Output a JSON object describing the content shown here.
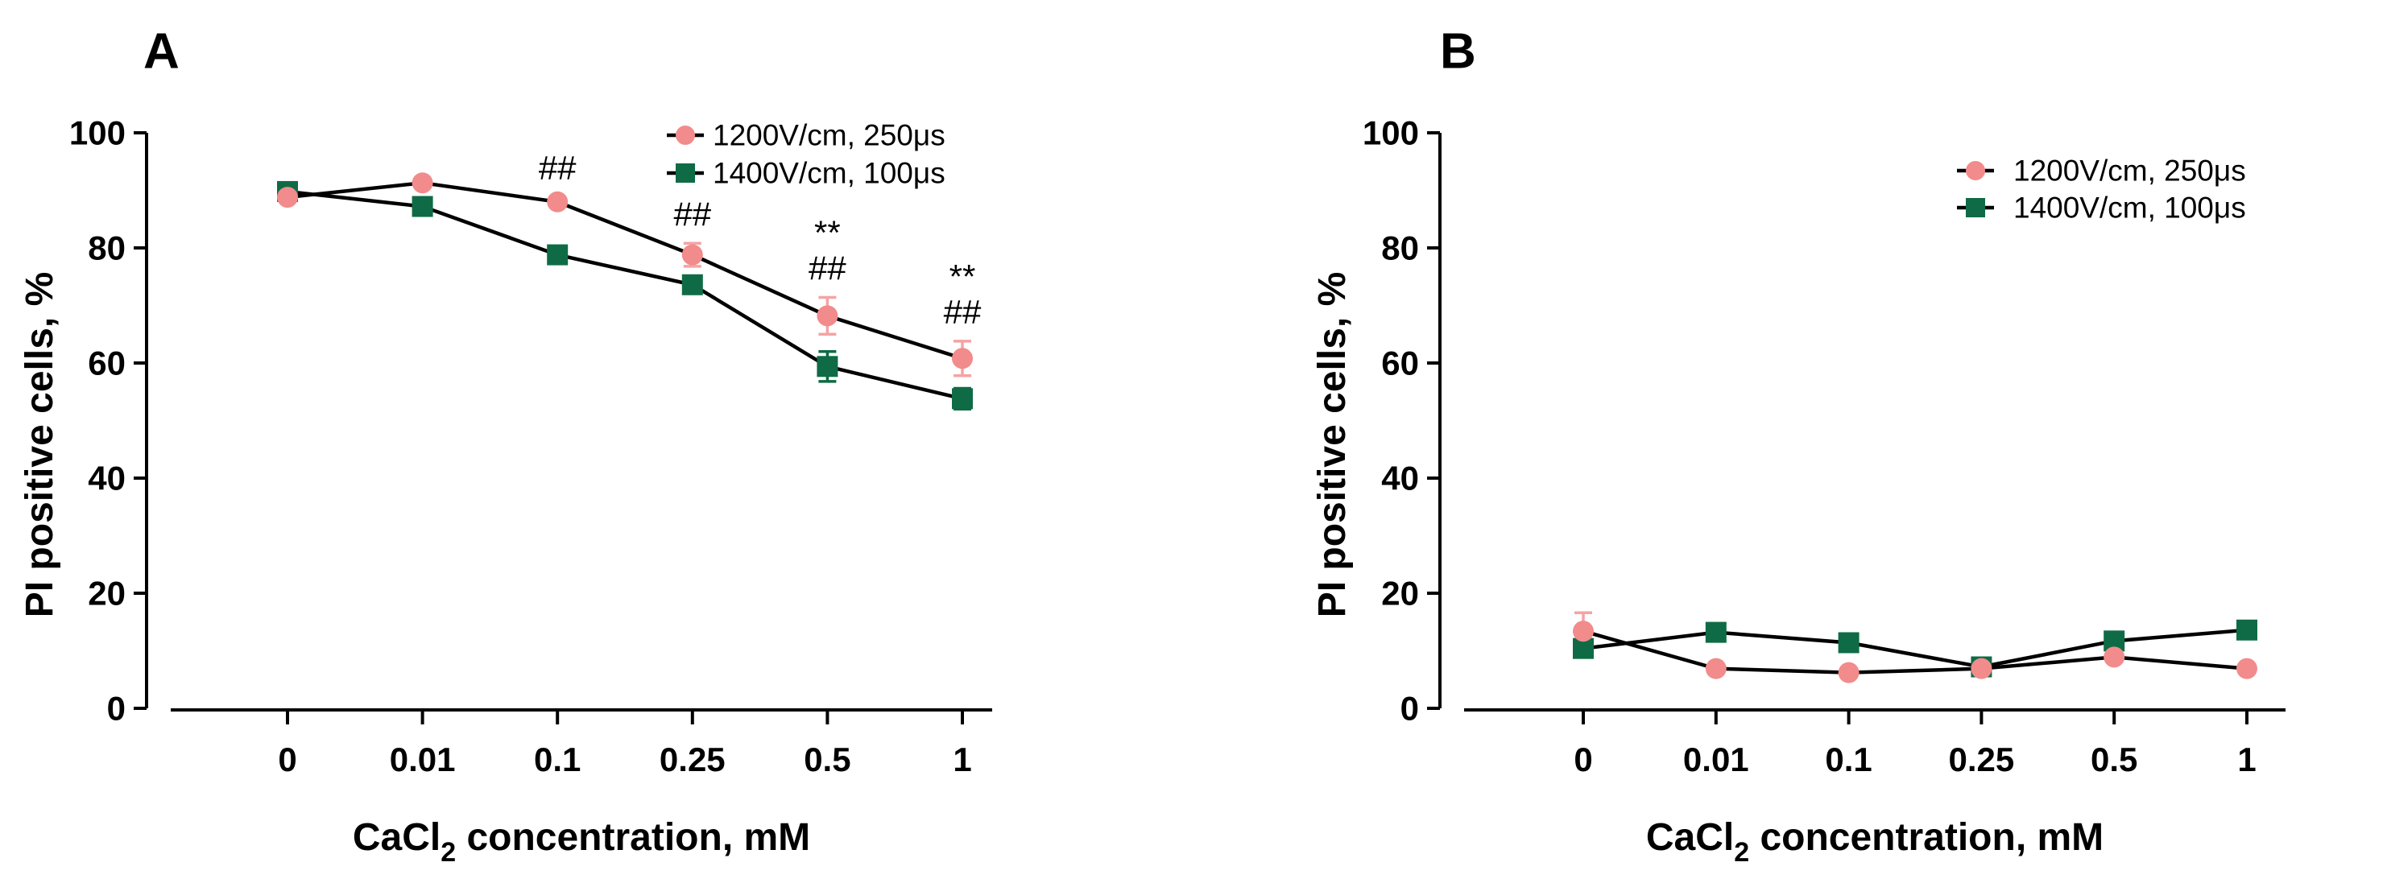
{
  "colors": {
    "series1": "#f28b8b",
    "series1_errorbar": "#f5a3a3",
    "series2": "#0f6b45",
    "line": "#000000",
    "axis": "#000000"
  },
  "chart_data": [
    {
      "panel_label": "A",
      "type": "line",
      "categories": [
        "0",
        "0.01",
        "0.1",
        "0.25",
        "0.5",
        "1"
      ],
      "xlabel_main": "CaCl",
      "xlabel_sub": "2",
      "xlabel_rest": " concentration, mM",
      "ylabel": "PI positive cells, %",
      "ylim": [
        0,
        100
      ],
      "yticks": [
        "0",
        "20",
        "40",
        "60",
        "80",
        "100"
      ],
      "legend_position": "top-right",
      "series": [
        {
          "name": "1200V/cm, 250μs",
          "marker": "circle",
          "values": [
            88.8,
            91.3,
            88.0,
            78.8,
            68.2,
            60.8
          ],
          "errors": [
            0.8,
            0.8,
            0.8,
            2.0,
            3.2,
            3.0
          ]
        },
        {
          "name": "1400V/cm, 100μs",
          "marker": "square",
          "values": [
            89.8,
            87.2,
            78.8,
            73.6,
            59.4,
            53.8
          ],
          "errors": [
            0.8,
            0.8,
            0.8,
            0.8,
            2.6,
            1.8
          ]
        }
      ],
      "annotations": [
        {
          "category": "0.1",
          "lines": [
            "##"
          ]
        },
        {
          "category": "0.25",
          "lines": [
            "##"
          ]
        },
        {
          "category": "0.5",
          "lines": [
            "**",
            "##"
          ]
        },
        {
          "category": "1",
          "lines": [
            "**",
            "##"
          ]
        }
      ]
    },
    {
      "panel_label": "B",
      "type": "line",
      "categories": [
        "0",
        "0.01",
        "0.1",
        "0.25",
        "0.5",
        "1"
      ],
      "xlabel_main": "CaCl",
      "xlabel_sub": "2",
      "xlabel_rest": " concentration, mM",
      "ylabel": "PI positive cells, %",
      "ylim": [
        0,
        100
      ],
      "yticks": [
        "0",
        "20",
        "40",
        "60",
        "80",
        "100"
      ],
      "legend_position": "top-right",
      "series": [
        {
          "name": "1200V/cm, 250μs",
          "marker": "circle",
          "values": [
            13.4,
            6.9,
            6.2,
            6.9,
            8.9,
            6.9
          ],
          "errors": [
            3.2,
            0.5,
            0.5,
            0.5,
            0.8,
            0.5
          ]
        },
        {
          "name": "1400V/cm, 100μs",
          "marker": "square",
          "values": [
            10.4,
            13.2,
            11.4,
            7.2,
            11.7,
            13.6
          ],
          "errors": [
            1.2,
            0.5,
            0.5,
            0.5,
            0.5,
            0.5
          ]
        }
      ],
      "annotations": []
    }
  ]
}
